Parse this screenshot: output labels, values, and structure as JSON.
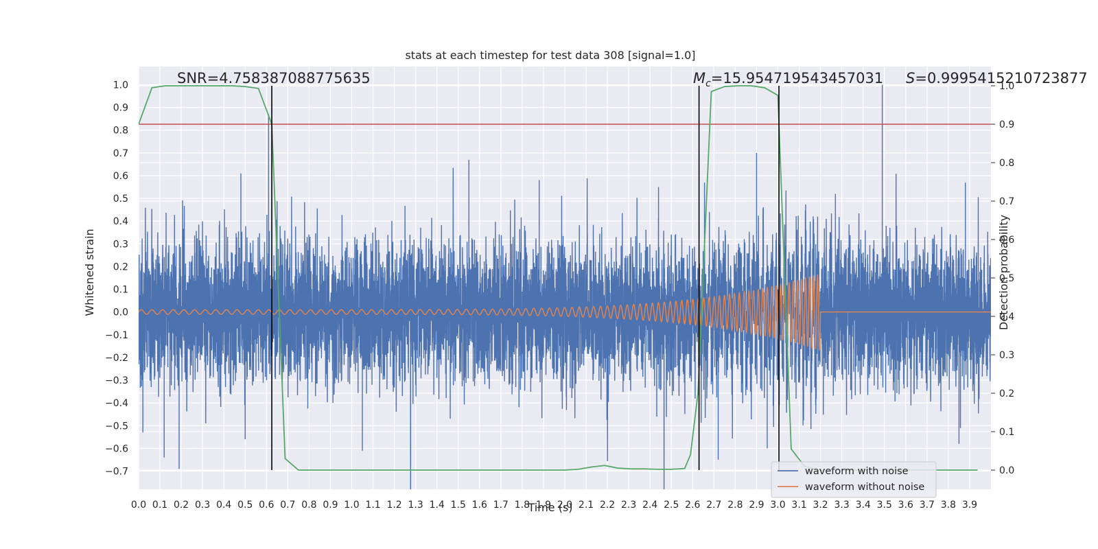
{
  "chart_data": {
    "type": "line",
    "title": "stats at each timestep for test data 308 [signal=1.0]",
    "xlabel": "Time (s)",
    "ylabel_left": "Whitened strain",
    "ylabel_right": "Detection probability",
    "xlim": [
      0.0,
      4.0
    ],
    "ylim_left": [
      -0.78,
      1.08
    ],
    "ylim_right": [
      -0.05,
      1.05
    ],
    "x_ticks": [
      "0.0",
      "0.1",
      "0.2",
      "0.3",
      "0.4",
      "0.5",
      "0.6",
      "0.7",
      "0.8",
      "0.9",
      "1.0",
      "1.1",
      "1.2",
      "1.3",
      "1.4",
      "1.5",
      "1.6",
      "1.7",
      "1.8",
      "1.9",
      "2.0",
      "2.1",
      "2.2",
      "2.3",
      "2.4",
      "2.5",
      "2.6",
      "2.7",
      "2.8",
      "2.9",
      "3.0",
      "3.1",
      "3.2",
      "3.3",
      "3.4",
      "3.5",
      "3.6",
      "3.7",
      "3.8",
      "3.9"
    ],
    "y_ticks_left": [
      "-0.7",
      "-0.6",
      "-0.5",
      "-0.4",
      "-0.3",
      "-0.2",
      "-0.1",
      "0.0",
      "0.1",
      "0.2",
      "0.3",
      "0.4",
      "0.5",
      "0.6",
      "0.7",
      "0.8",
      "0.9",
      "1.0"
    ],
    "y_ticks_right": [
      "0.0",
      "0.1",
      "0.2",
      "0.3",
      "0.4",
      "0.5",
      "0.6",
      "0.7",
      "0.8",
      "0.9",
      "1.0"
    ],
    "grid": true,
    "legend_position": "lower-right",
    "annotations": {
      "snr": "SNR=4.758387088775635",
      "mc_symbol": "M",
      "mc_sub": "c",
      "mc_value": "=15.954719543457031",
      "s_symbol": "S",
      "s_value": "=0.9995415210723877"
    },
    "threshold": {
      "y_right": 0.9,
      "color": "#c44e52"
    },
    "vlines_x": [
      0.625,
      2.63,
      3.005
    ],
    "noisy_waveform": {
      "name": "waveform with noise",
      "color": "#4c72b0",
      "sample_rate": 2048,
      "envelope_typical": 0.2,
      "spike_points": [
        {
          "x": 0.19,
          "y": -0.69
        },
        {
          "x": 0.12,
          "y": -0.64
        },
        {
          "x": 0.48,
          "y": 0.61
        },
        {
          "x": 0.61,
          "y": 0.87
        },
        {
          "x": 1.55,
          "y": 0.67
        },
        {
          "x": 1.88,
          "y": 0.58
        },
        {
          "x": 2.9,
          "y": 0.7
        },
        {
          "x": 3.49,
          "y": 1.0
        },
        {
          "x": 3.88,
          "y": 0.57
        },
        {
          "x": 1.05,
          "y": -0.61
        },
        {
          "x": 2.72,
          "y": -0.65
        },
        {
          "x": 3.85,
          "y": -0.58
        },
        {
          "x": 0.02,
          "y": -0.53
        },
        {
          "x": 0.5,
          "y": -0.56
        },
        {
          "x": 2.95,
          "y": -0.6
        },
        {
          "x": 2.44,
          "y": 0.55
        },
        {
          "x": 3.27,
          "y": 0.52
        }
      ]
    },
    "clean_waveform": {
      "name": "waveform without noise",
      "color": "#dd8452",
      "t_end": 3.2,
      "f_start": 20,
      "f_end": 55,
      "amp_start": 0.01,
      "amp_end": 0.17
    },
    "detection_probability": {
      "name": "detection probability",
      "color": "#55a868",
      "x": [
        0.0,
        0.0625,
        0.125,
        0.1875,
        0.25,
        0.3125,
        0.375,
        0.4375,
        0.5,
        0.5625,
        0.625,
        0.6875,
        0.75,
        0.8125,
        0.875,
        0.9375,
        1.0,
        1.0625,
        1.125,
        1.1875,
        1.25,
        1.3125,
        1.375,
        1.4375,
        1.5,
        1.5625,
        1.625,
        1.6875,
        1.75,
        1.8125,
        1.875,
        1.9375,
        2.0,
        2.0625,
        2.125,
        2.1875,
        2.25,
        2.3125,
        2.375,
        2.4375,
        2.5,
        2.5625,
        2.59,
        2.625,
        2.6875,
        2.75,
        2.8125,
        2.875,
        2.9375,
        3.0,
        3.0625,
        3.125,
        3.1875,
        3.25,
        3.3125,
        3.375,
        3.4375,
        3.5,
        3.5625,
        3.625,
        3.6875,
        3.75,
        3.8125,
        3.875,
        3.9375
      ],
      "y": [
        0.9,
        0.995,
        1.0,
        1.0,
        1.0,
        1.0,
        1.0,
        1.0,
        0.998,
        0.993,
        0.9,
        0.03,
        0.0,
        0.0,
        0.0,
        0.0,
        0.0,
        0.0,
        0.0,
        0.0,
        0.0,
        0.0,
        0.0,
        0.0,
        0.0,
        0.0,
        0.0,
        0.0,
        0.0,
        0.0,
        0.0,
        0.0,
        0.0,
        0.002,
        0.008,
        0.012,
        0.005,
        0.003,
        0.003,
        0.002,
        0.002,
        0.004,
        0.04,
        0.2,
        0.985,
        0.998,
        1.0,
        1.0,
        0.995,
        0.975,
        0.055,
        0.01,
        0.0,
        0.0,
        0.0,
        0.0,
        0.0,
        0.0,
        0.0,
        0.0,
        0.0,
        0.0,
        0.0,
        0.0,
        0.0
      ]
    }
  }
}
